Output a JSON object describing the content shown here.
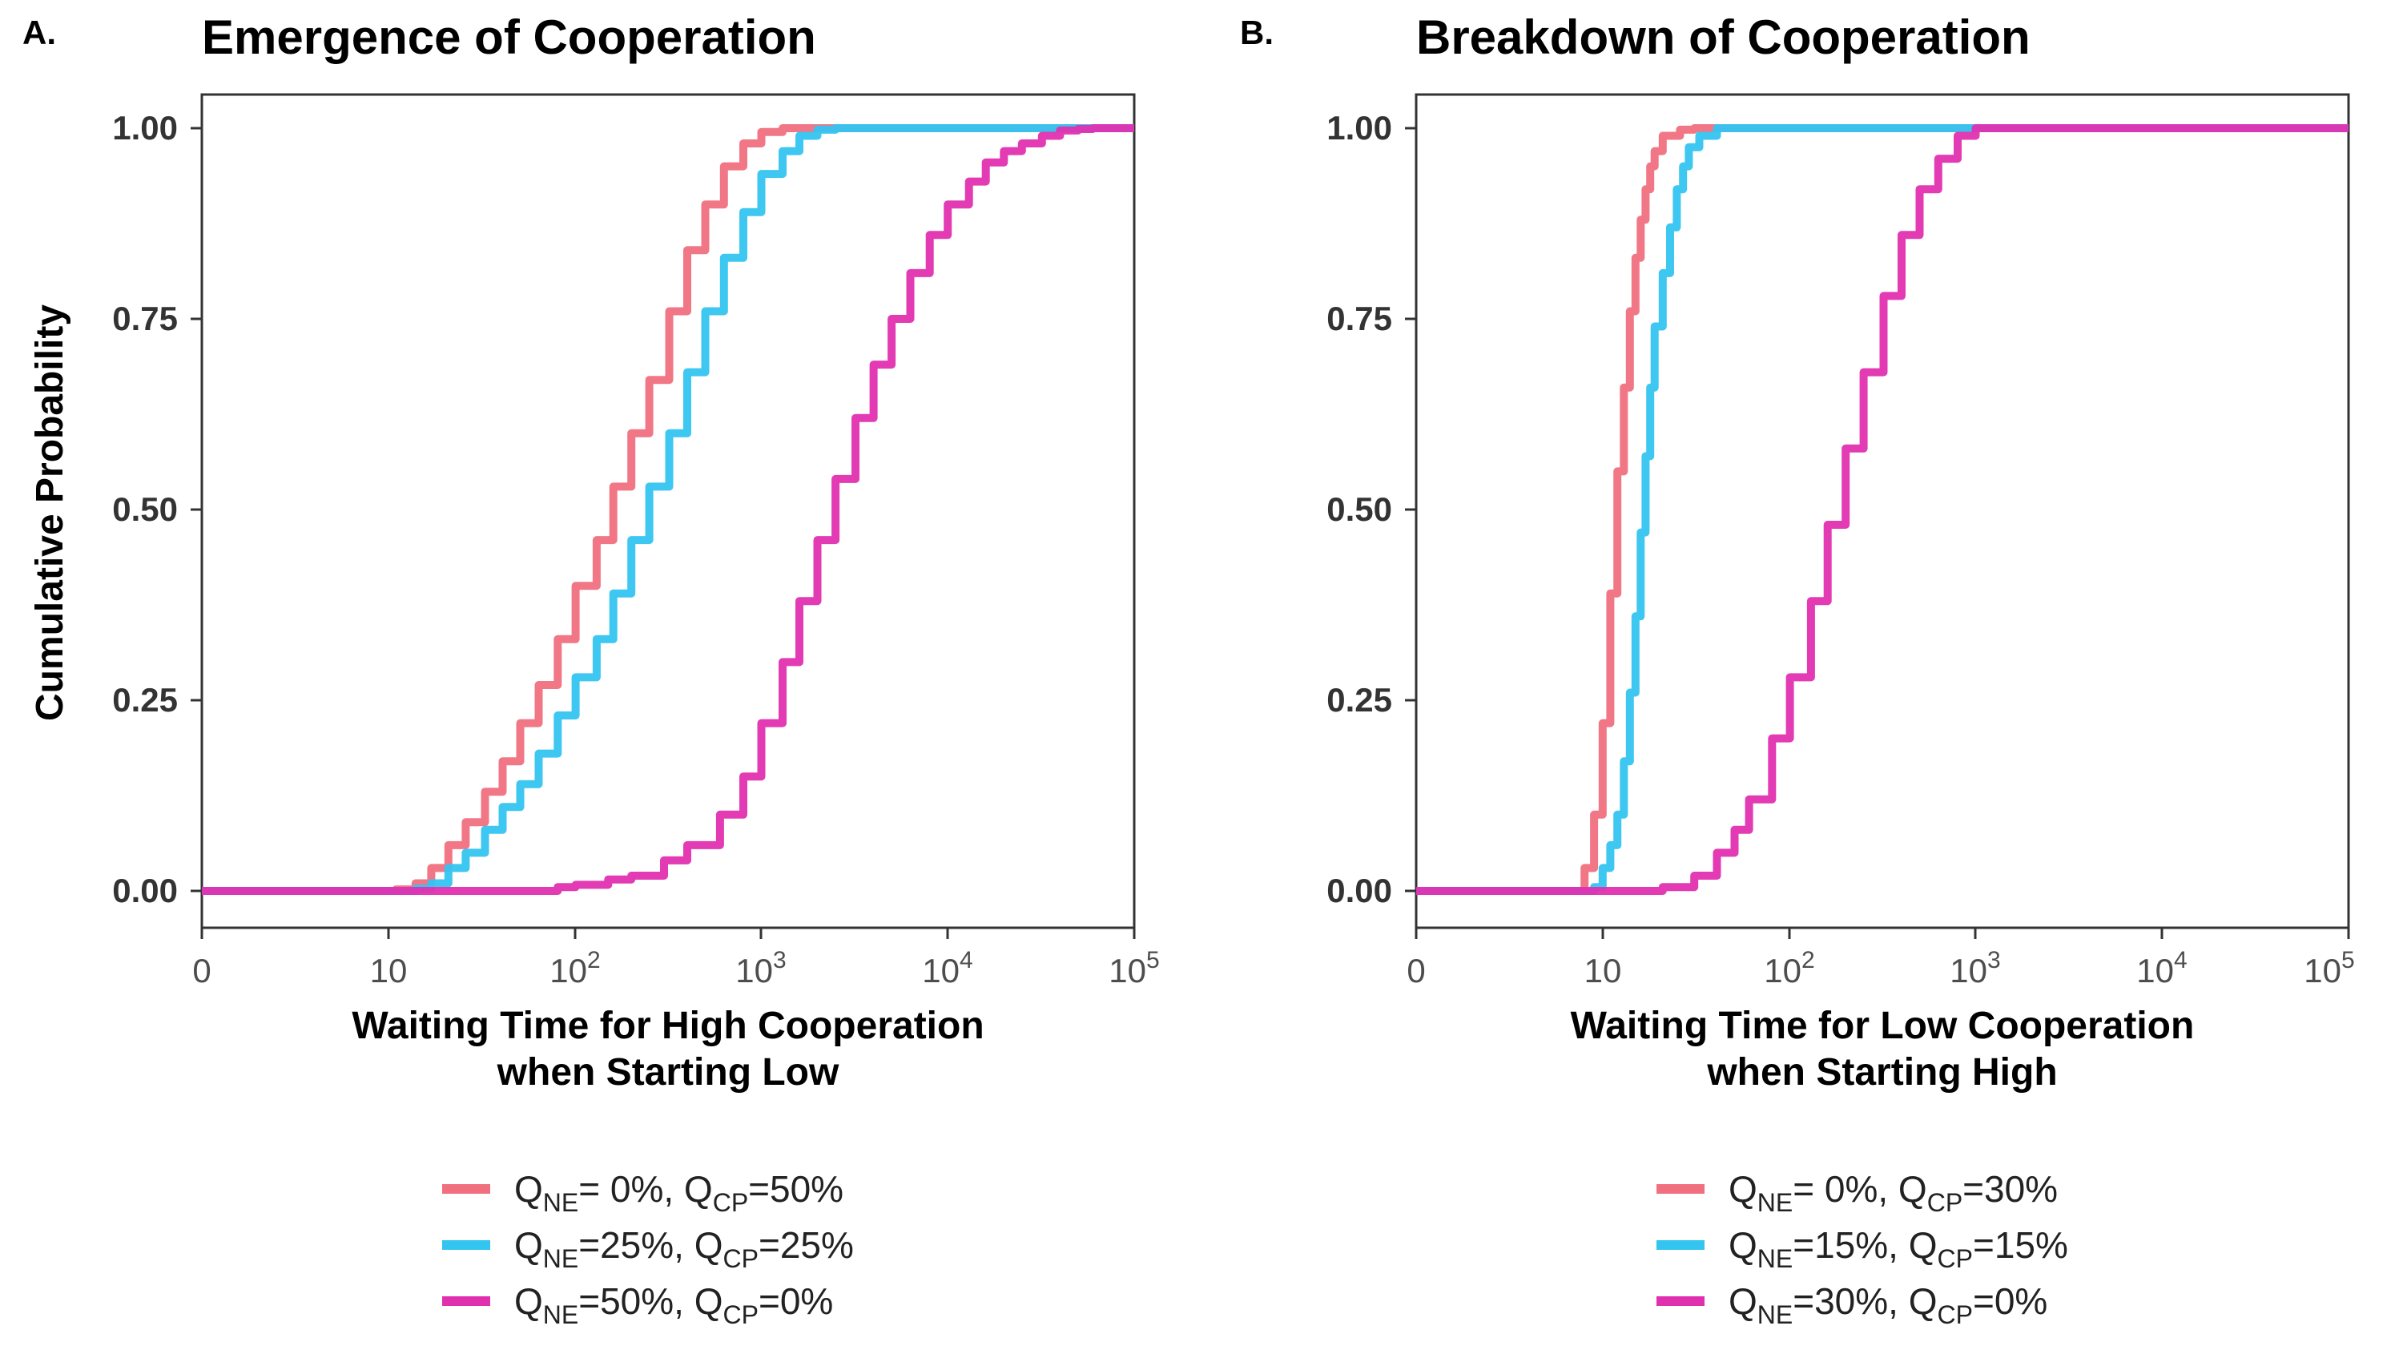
{
  "panels": [
    {
      "letter": "A.",
      "title": "Emergence of Cooperation",
      "xlabel_line1": "Waiting Time for High Cooperation",
      "xlabel_line2": "when Starting Low",
      "legend": [
        {
          "a": "Q",
          "b": "NE",
          "c": "= 0%,  Q",
          "d": "CP",
          "e": "=50%"
        },
        {
          "a": "Q",
          "b": "NE",
          "c": "=25%, Q",
          "d": "CP",
          "e": "=25%"
        },
        {
          "a": "Q",
          "b": "NE",
          "c": "=50%, Q",
          "d": "CP",
          "e": "=0%"
        }
      ]
    },
    {
      "letter": "B.",
      "title": "Breakdown of Cooperation",
      "xlabel_line1": "Waiting Time for Low Cooperation",
      "xlabel_line2": "when Starting High",
      "legend": [
        {
          "a": "Q",
          "b": "NE",
          "c": "= 0%,  Q",
          "d": "CP",
          "e": "=30%"
        },
        {
          "a": "Q",
          "b": "NE",
          "c": "=15%, Q",
          "d": "CP",
          "e": "=15%"
        },
        {
          "a": "Q",
          "b": "NE",
          "c": "=30%, Q",
          "d": "CP",
          "e": "=0%"
        }
      ]
    }
  ],
  "ylabel": "Cumulative Probability",
  "xticks": [
    {
      "base": "0",
      "exp": ""
    },
    {
      "base": "10",
      "exp": ""
    },
    {
      "base": "10",
      "exp": "2"
    },
    {
      "base": "10",
      "exp": "3"
    },
    {
      "base": "10",
      "exp": "4"
    },
    {
      "base": "10",
      "exp": "5"
    }
  ],
  "yticks": [
    "0.00",
    "0.25",
    "0.50",
    "0.75",
    "1.00"
  ],
  "chart_data": [
    {
      "type": "line",
      "title": "Emergence of Cooperation",
      "xlabel": "Waiting Time for High Cooperation when Starting Low",
      "ylabel": "Cumulative Probability",
      "x_scale": "log10(1+x)",
      "xlim": [
        0,
        100000
      ],
      "ylim": [
        0,
        1
      ],
      "grid": false,
      "legend_position": "bottom",
      "series": [
        {
          "name": "Q_NE= 0%, Q_CP=50%",
          "color": "#f07080",
          "x": [
            0,
            7,
            10,
            13,
            16,
            20,
            25,
            32,
            40,
            50,
            63,
            80,
            100,
            130,
            160,
            200,
            250,
            320,
            400,
            500,
            630,
            800,
            1000,
            1300,
            100000
          ],
          "y": [
            0,
            0,
            0.002,
            0.01,
            0.03,
            0.06,
            0.09,
            0.13,
            0.17,
            0.22,
            0.27,
            0.33,
            0.4,
            0.46,
            0.53,
            0.6,
            0.67,
            0.76,
            0.84,
            0.9,
            0.95,
            0.98,
            0.995,
            1,
            1
          ]
        },
        {
          "name": "Q_NE=25%, Q_CP=25%",
          "color": "#33c4f0",
          "x": [
            0,
            10,
            13,
            16,
            20,
            25,
            32,
            40,
            50,
            63,
            80,
            100,
            130,
            160,
            200,
            250,
            320,
            400,
            500,
            630,
            800,
            1000,
            1300,
            1600,
            2000,
            2500,
            100000
          ],
          "y": [
            0,
            0,
            0.003,
            0.01,
            0.03,
            0.05,
            0.08,
            0.11,
            0.14,
            0.18,
            0.23,
            0.28,
            0.33,
            0.39,
            0.46,
            0.53,
            0.6,
            0.68,
            0.76,
            0.83,
            0.89,
            0.94,
            0.97,
            0.99,
            0.998,
            1,
            1
          ]
        },
        {
          "name": "Q_NE=50%, Q_CP=0%",
          "color": "#e030b0",
          "x": [
            0,
            40,
            80,
            100,
            150,
            200,
            300,
            400,
            600,
            800,
            1000,
            1300,
            1600,
            2000,
            2500,
            3200,
            4000,
            5000,
            6300,
            8000,
            10000,
            13000,
            16000,
            20000,
            25000,
            32000,
            40000,
            50000,
            60000,
            100000
          ],
          "y": [
            0,
            0,
            0.005,
            0.008,
            0.015,
            0.02,
            0.04,
            0.06,
            0.1,
            0.15,
            0.22,
            0.3,
            0.38,
            0.46,
            0.54,
            0.62,
            0.69,
            0.75,
            0.81,
            0.86,
            0.9,
            0.93,
            0.955,
            0.97,
            0.98,
            0.99,
            0.997,
            0.999,
            1,
            1
          ]
        }
      ]
    },
    {
      "type": "line",
      "title": "Breakdown of Cooperation",
      "xlabel": "Waiting Time for Low Cooperation when Starting High",
      "ylabel": "Cumulative Probability",
      "x_scale": "log10(1+x)",
      "xlim": [
        0,
        100000
      ],
      "ylim": [
        0,
        1
      ],
      "grid": false,
      "legend_position": "bottom",
      "series": [
        {
          "name": "Q_NE= 0%, Q_CP=30%",
          "color": "#f07080",
          "x": [
            0,
            6,
            7,
            8,
            9,
            10,
            11,
            12,
            13,
            14,
            15,
            16,
            17,
            18,
            20,
            25,
            30,
            100000
          ],
          "y": [
            0,
            0,
            0.03,
            0.1,
            0.22,
            0.39,
            0.55,
            0.66,
            0.76,
            0.83,
            0.88,
            0.92,
            0.95,
            0.97,
            0.99,
            0.998,
            1,
            1
          ]
        },
        {
          "name": "Q_NE=15%, Q_CP=15%",
          "color": "#33c4f0",
          "x": [
            0,
            7,
            8,
            9,
            10,
            11,
            12,
            13,
            14,
            15,
            16,
            17,
            18,
            20,
            22,
            24,
            26,
            28,
            32,
            40,
            100000
          ],
          "y": [
            0,
            0,
            0.005,
            0.03,
            0.06,
            0.1,
            0.17,
            0.26,
            0.36,
            0.47,
            0.57,
            0.66,
            0.74,
            0.81,
            0.87,
            0.92,
            0.95,
            0.975,
            0.99,
            1,
            1
          ]
        },
        {
          "name": "Q_NE=30%, Q_CP=0%",
          "color": "#e030b0",
          "x": [
            0,
            20,
            30,
            40,
            50,
            60,
            80,
            100,
            130,
            160,
            200,
            250,
            320,
            400,
            500,
            630,
            800,
            1000,
            100000
          ],
          "y": [
            0,
            0.005,
            0.02,
            0.05,
            0.08,
            0.12,
            0.2,
            0.28,
            0.38,
            0.48,
            0.58,
            0.68,
            0.78,
            0.86,
            0.92,
            0.96,
            0.99,
            1,
            1
          ]
        }
      ]
    }
  ]
}
